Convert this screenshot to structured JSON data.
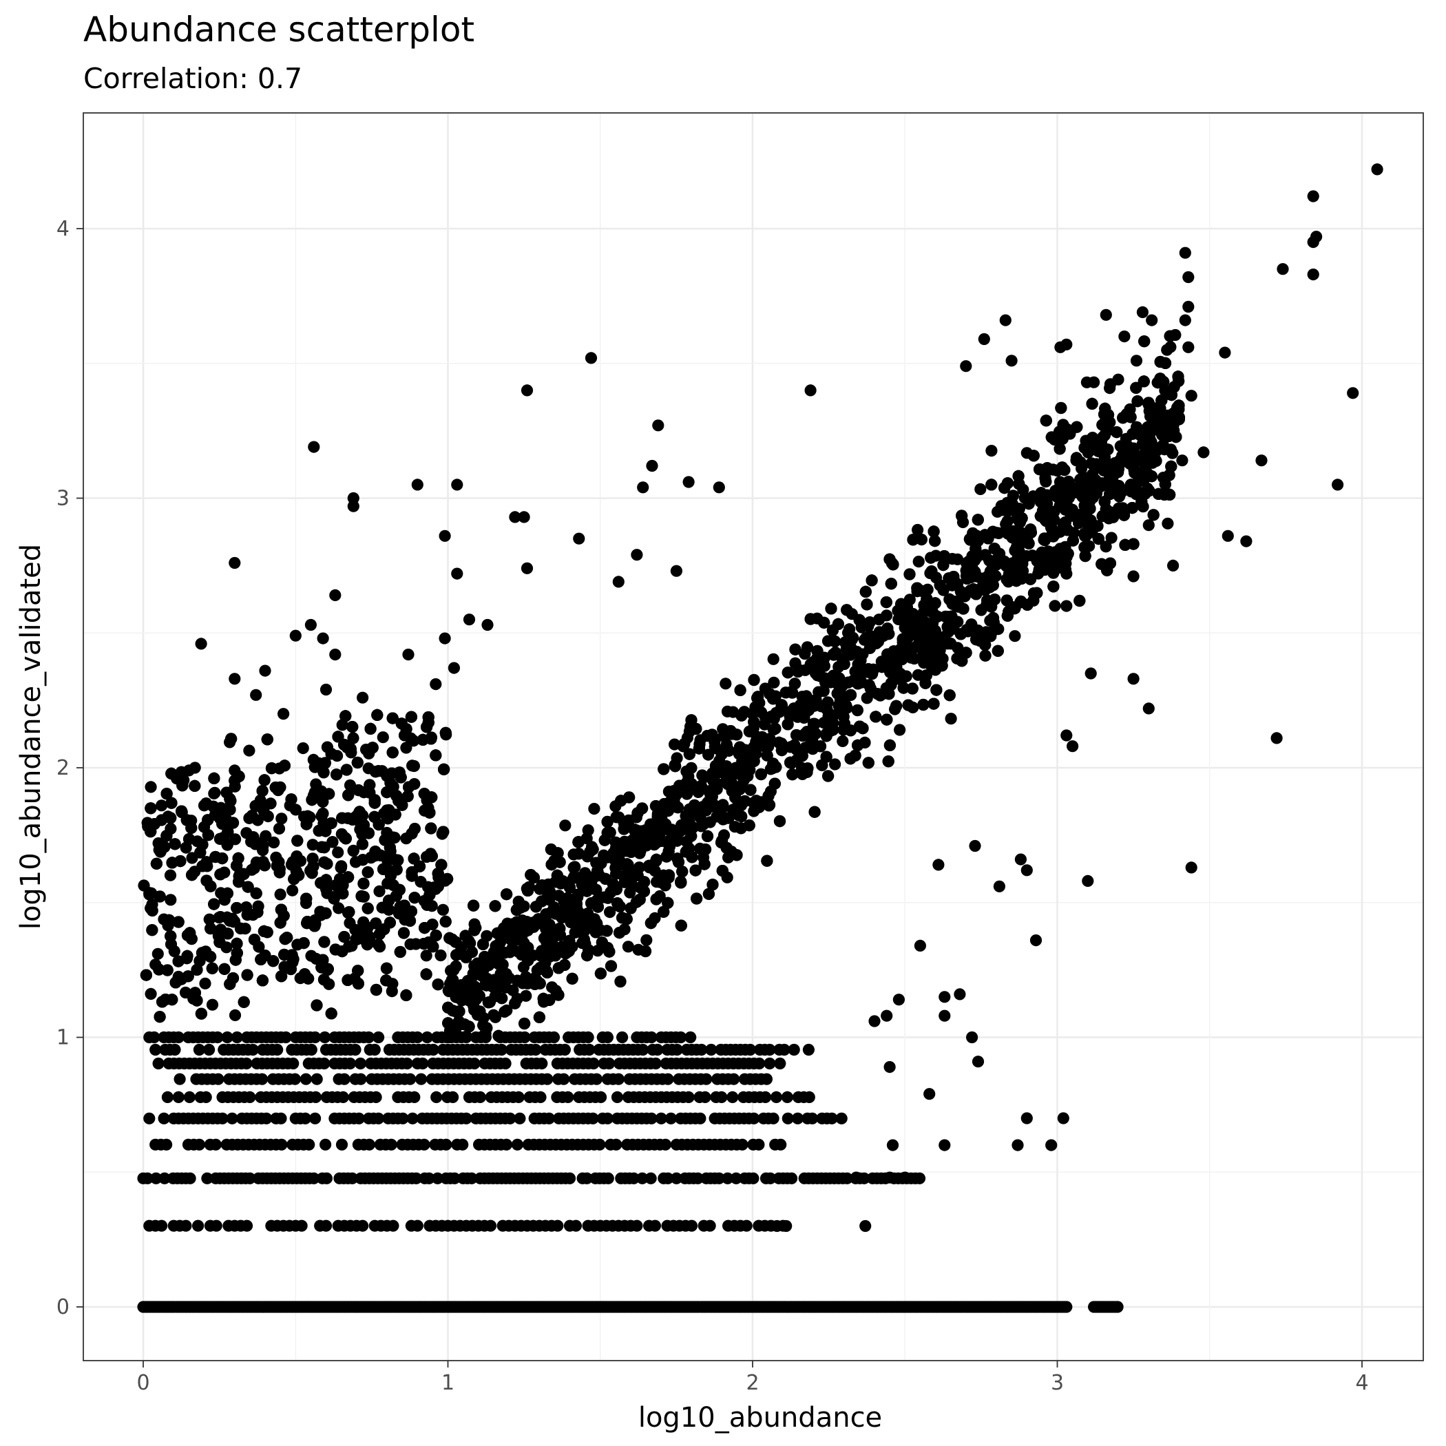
{
  "chart_data": {
    "type": "scatter",
    "title": "Abundance scatterplot",
    "subtitle": "Correlation: 0.7",
    "xlabel": "log10_abundance",
    "ylabel": "log10_abundance_validated",
    "xlim": [
      -0.2,
      4.25
    ],
    "ylim": [
      -0.2,
      4.4
    ],
    "xticks": [
      0,
      1,
      2,
      3,
      4
    ],
    "yticks": [
      0,
      1,
      2,
      3,
      4
    ],
    "xtick_labels": [
      "0",
      "1",
      "2",
      "3",
      "4"
    ],
    "ytick_labels": [
      "0",
      "1",
      "2",
      "3",
      "4"
    ],
    "grid": true,
    "point_color": "#000000",
    "series": [
      {
        "points": [
          [
            4.05,
            4.22
          ],
          [
            3.84,
            4.12
          ],
          [
            3.85,
            3.97
          ],
          [
            3.84,
            3.95
          ],
          [
            3.84,
            3.83
          ],
          [
            3.74,
            3.85
          ],
          [
            3.42,
            3.91
          ],
          [
            3.43,
            3.82
          ],
          [
            3.43,
            3.71
          ],
          [
            3.42,
            3.66
          ],
          [
            3.43,
            3.56
          ],
          [
            3.55,
            3.54
          ],
          [
            3.97,
            3.39
          ],
          [
            3.92,
            3.05
          ],
          [
            3.67,
            3.14
          ],
          [
            3.56,
            2.86
          ],
          [
            3.62,
            2.84
          ],
          [
            3.72,
            2.11
          ],
          [
            3.44,
            1.63
          ],
          [
            3.44,
            3.38
          ],
          [
            3.4,
            3.3
          ],
          [
            3.48,
            3.17
          ],
          [
            3.41,
            3.14
          ],
          [
            3.38,
            2.75
          ],
          [
            1.47,
            3.52
          ],
          [
            1.26,
            3.4
          ],
          [
            2.19,
            3.4
          ],
          [
            1.69,
            3.27
          ],
          [
            0.56,
            3.19
          ],
          [
            1.67,
            3.12
          ],
          [
            0.9,
            3.05
          ],
          [
            1.03,
            3.05
          ],
          [
            1.79,
            3.06
          ],
          [
            1.64,
            3.04
          ],
          [
            0.69,
            2.97
          ],
          [
            0.69,
            3.0
          ],
          [
            1.22,
            2.93
          ],
          [
            1.25,
            2.93
          ],
          [
            0.3,
            2.76
          ],
          [
            1.26,
            2.74
          ],
          [
            0.19,
            2.46
          ],
          [
            0.63,
            2.64
          ],
          [
            2.7,
            3.49
          ],
          [
            2.83,
            3.66
          ],
          [
            2.76,
            3.59
          ],
          [
            2.85,
            3.51
          ],
          [
            3.01,
            3.56
          ],
          [
            3.03,
            3.57
          ],
          [
            3.16,
            3.68
          ],
          [
            3.28,
            3.69
          ],
          [
            3.31,
            3.66
          ],
          [
            3.26,
            3.51
          ],
          [
            3.22,
            3.6
          ],
          [
            3.36,
            3.55
          ],
          [
            3.12,
            3.43
          ],
          [
            3.2,
            3.44
          ],
          [
            3.1,
            2.9
          ],
          [
            3.17,
            2.95
          ],
          [
            3.3,
            2.9
          ],
          [
            3.25,
            2.71
          ],
          [
            3.11,
            2.35
          ],
          [
            3.03,
            2.6
          ],
          [
            3.25,
            2.33
          ],
          [
            3.3,
            2.22
          ],
          [
            3.03,
            2.12
          ],
          [
            3.05,
            2.08
          ],
          [
            3.1,
            1.58
          ],
          [
            2.93,
            1.36
          ],
          [
            2.88,
            1.66
          ],
          [
            2.9,
            1.62
          ],
          [
            2.81,
            1.56
          ],
          [
            2.73,
            1.71
          ],
          [
            2.61,
            1.64
          ],
          [
            2.63,
            1.15
          ],
          [
            2.68,
            1.16
          ],
          [
            2.63,
            1.08
          ],
          [
            2.74,
            0.91
          ],
          [
            2.72,
            1.0
          ],
          [
            2.55,
            1.34
          ],
          [
            2.48,
            1.14
          ],
          [
            2.44,
            1.08
          ],
          [
            2.4,
            1.06
          ],
          [
            2.45,
            0.89
          ],
          [
            2.58,
            0.79
          ],
          [
            2.9,
            0.7
          ],
          [
            3.02,
            0.7
          ],
          [
            2.87,
            0.6
          ],
          [
            2.98,
            0.6
          ],
          [
            2.46,
            0.6
          ],
          [
            2.63,
            0.6
          ],
          [
            2.37,
            0.3
          ],
          [
            2.34,
            0.48
          ],
          [
            2.45,
            0.48
          ],
          [
            2.5,
            0.48
          ],
          [
            2.08,
            0.3
          ],
          [
            2.11,
            0.3
          ],
          [
            0.02,
            1.53
          ],
          [
            0.05,
            1.72
          ],
          [
            0.06,
            1.86
          ],
          [
            0.09,
            1.51
          ],
          [
            0.03,
            1.47
          ],
          [
            0.04,
            1.27
          ],
          [
            0.11,
            1.96
          ],
          [
            0.15,
            1.99
          ],
          [
            0.17,
            2.0
          ],
          [
            0.2,
            1.86
          ],
          [
            0.2,
            1.78
          ],
          [
            0.3,
            1.99
          ],
          [
            0.4,
            2.36
          ],
          [
            0.37,
            2.27
          ],
          [
            0.3,
            2.33
          ],
          [
            0.46,
            2.2
          ],
          [
            0.5,
            2.49
          ],
          [
            0.59,
            2.48
          ],
          [
            0.55,
            2.53
          ],
          [
            0.63,
            2.42
          ],
          [
            0.6,
            2.29
          ],
          [
            0.72,
            2.26
          ],
          [
            0.79,
            1.83
          ],
          [
            0.87,
            2.42
          ],
          [
            0.99,
            2.86
          ],
          [
            1.03,
            2.72
          ],
          [
            0.99,
            2.48
          ],
          [
            1.02,
            2.37
          ],
          [
            1.13,
            2.53
          ],
          [
            0.96,
            2.31
          ],
          [
            1.07,
            2.55
          ],
          [
            1.43,
            2.85
          ],
          [
            1.56,
            2.69
          ],
          [
            1.62,
            2.79
          ],
          [
            1.75,
            2.73
          ],
          [
            1.89,
            3.04
          ]
        ]
      }
    ],
    "baseline_rows": [
      {
        "y": 0.0,
        "x_ranges": [
          [
            0.0,
            3.03
          ],
          [
            3.12,
            3.2
          ]
        ],
        "step": 0.006
      },
      {
        "y": 0.301,
        "x_ranges": [
          [
            0.02,
            2.12
          ]
        ],
        "step": 0.02
      },
      {
        "y": 0.477,
        "x_ranges": [
          [
            0.0,
            2.55
          ]
        ],
        "step": 0.014
      },
      {
        "y": 0.602,
        "x_ranges": [
          [
            0.04,
            2.1
          ]
        ],
        "step": 0.018
      },
      {
        "y": 0.699,
        "x_ranges": [
          [
            0.02,
            2.3
          ]
        ],
        "step": 0.016
      },
      {
        "y": 0.778,
        "x_ranges": [
          [
            0.08,
            2.2
          ]
        ],
        "step": 0.018
      },
      {
        "y": 0.845,
        "x_ranges": [
          [
            0.12,
            2.05
          ]
        ],
        "step": 0.018
      },
      {
        "y": 0.903,
        "x_ranges": [
          [
            0.05,
            2.1
          ]
        ],
        "step": 0.017
      },
      {
        "y": 0.954,
        "x_ranges": [
          [
            0.04,
            2.2
          ]
        ],
        "step": 0.016
      },
      {
        "y": 1.0,
        "x_ranges": [
          [
            0.02,
            1.8
          ]
        ],
        "step": 0.016
      }
    ],
    "dense_region": {
      "description": "diagonal band around y=x from x≈0 to x≈3.4",
      "point_count": 5200
    }
  }
}
